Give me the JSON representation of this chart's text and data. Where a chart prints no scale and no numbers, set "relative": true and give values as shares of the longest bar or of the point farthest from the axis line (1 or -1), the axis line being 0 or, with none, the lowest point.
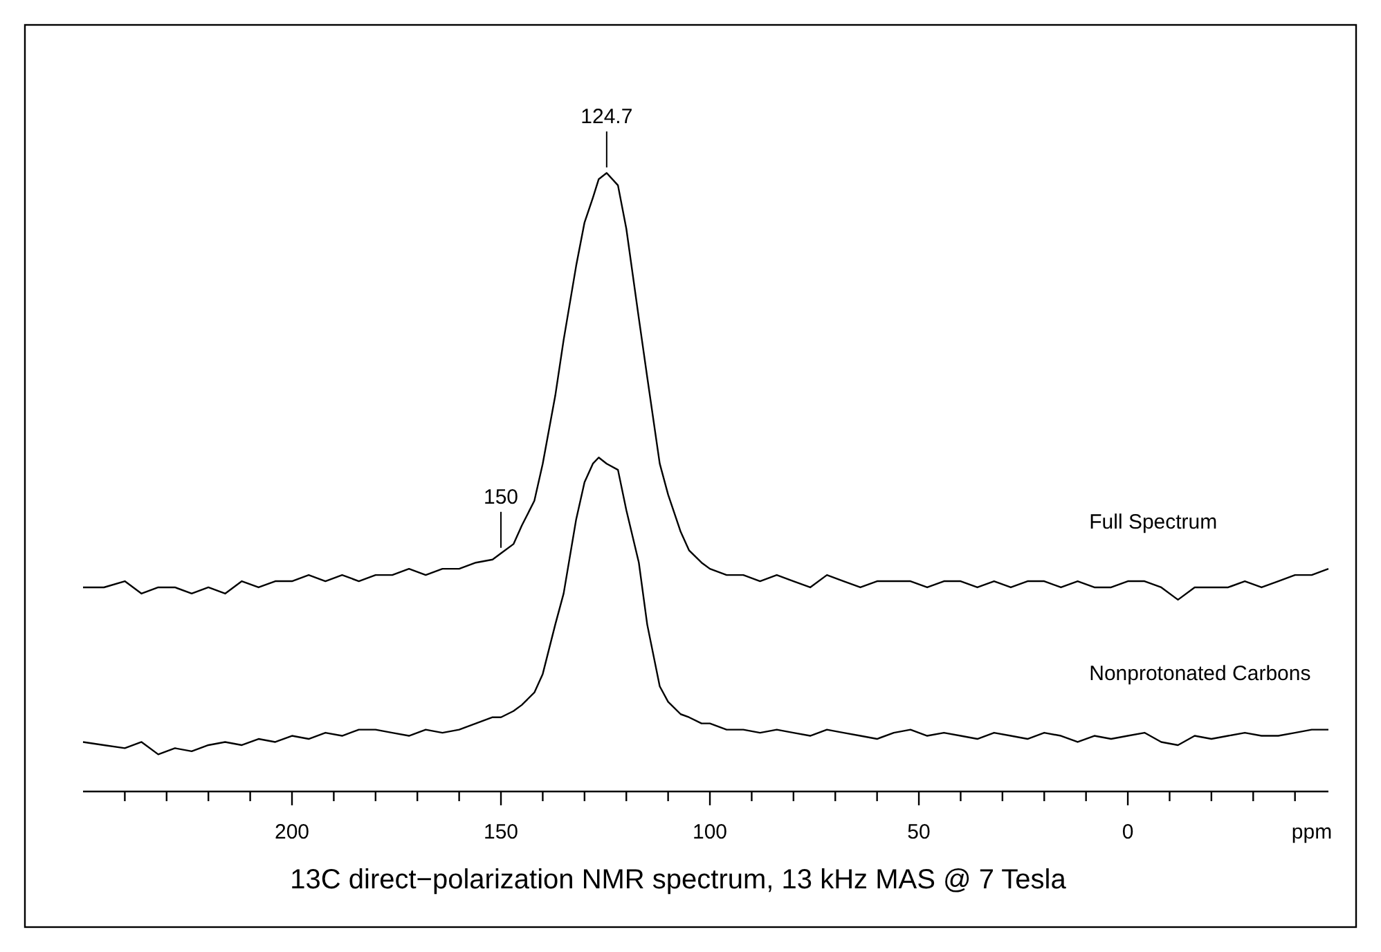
{
  "chart_data": {
    "type": "line",
    "relative": true,
    "title": "13C direct−polarization NMR spectrum, 13 kHz MAS @ 7 Tesla",
    "xlabel": "ppm",
    "xlim": [
      250,
      -48
    ],
    "xticks": [
      {
        "value": 240,
        "label": null
      },
      {
        "value": 230,
        "label": null
      },
      {
        "value": 220,
        "label": null
      },
      {
        "value": 210,
        "label": null
      },
      200,
      {
        "value": 190,
        "label": null
      },
      {
        "value": 180,
        "label": null
      },
      {
        "value": 170,
        "label": null
      },
      {
        "value": 160,
        "label": null
      },
      150,
      {
        "value": 140,
        "label": null
      },
      {
        "value": 130,
        "label": null
      },
      {
        "value": 120,
        "label": null
      },
      {
        "value": 110,
        "label": null
      },
      100,
      {
        "value": 90,
        "label": null
      },
      {
        "value": 80,
        "label": null
      },
      {
        "value": 70,
        "label": null
      },
      {
        "value": 60,
        "label": null
      },
      50,
      {
        "value": 40,
        "label": null
      },
      {
        "value": 30,
        "label": null
      },
      {
        "value": 20,
        "label": null
      },
      {
        "value": 10,
        "label": null
      },
      0,
      {
        "value": -10,
        "label": null
      },
      {
        "value": -20,
        "label": null
      },
      {
        "value": -30,
        "label": null
      },
      {
        "value": -40,
        "label": null
      }
    ],
    "x": [
      250,
      245,
      240,
      236,
      232,
      228,
      224,
      220,
      216,
      212,
      208,
      204,
      200,
      196,
      192,
      188,
      184,
      180,
      176,
      172,
      168,
      164,
      160,
      156,
      152,
      150,
      147,
      145,
      142,
      140,
      137,
      135,
      132,
      130,
      128,
      126.6,
      124.7,
      122,
      120,
      117,
      115,
      112,
      110,
      107,
      105,
      102,
      100,
      96,
      92,
      88,
      84,
      80,
      76,
      72,
      68,
      64,
      60,
      56,
      52,
      48,
      44,
      40,
      36,
      32,
      28,
      24,
      20,
      16,
      12,
      8,
      4,
      0,
      -4,
      -8,
      -12,
      -16,
      -20,
      -24,
      -28,
      -32,
      -36,
      -40,
      -44,
      -48
    ],
    "annotations": [
      {
        "text": "124.7",
        "x": 124.7,
        "y": 1.0
      },
      {
        "text": "150",
        "x": 150,
        "y": 0.385
      }
    ],
    "series": [
      {
        "name": "Full Spectrum",
        "color": "#000000",
        "values": [
          0.33,
          0.33,
          0.34,
          0.32,
          0.33,
          0.33,
          0.32,
          0.33,
          0.32,
          0.34,
          0.33,
          0.34,
          0.34,
          0.35,
          0.34,
          0.35,
          0.34,
          0.35,
          0.35,
          0.36,
          0.35,
          0.36,
          0.36,
          0.37,
          0.375,
          0.385,
          0.4,
          0.43,
          0.47,
          0.53,
          0.64,
          0.73,
          0.85,
          0.92,
          0.96,
          0.99,
          1.0,
          0.98,
          0.91,
          0.765,
          0.67,
          0.53,
          0.48,
          0.42,
          0.39,
          0.37,
          0.36,
          0.35,
          0.35,
          0.34,
          0.35,
          0.34,
          0.33,
          0.35,
          0.34,
          0.33,
          0.34,
          0.34,
          0.34,
          0.33,
          0.34,
          0.34,
          0.33,
          0.34,
          0.33,
          0.34,
          0.34,
          0.33,
          0.34,
          0.33,
          0.33,
          0.34,
          0.34,
          0.33,
          0.31,
          0.33,
          0.33,
          0.33,
          0.34,
          0.33,
          0.34,
          0.35,
          0.35,
          0.36
        ]
      },
      {
        "name": "Nonprotonated Carbons",
        "color": "#000000",
        "values": [
          0.08,
          0.075,
          0.07,
          0.08,
          0.06,
          0.07,
          0.065,
          0.075,
          0.08,
          0.075,
          0.085,
          0.08,
          0.09,
          0.085,
          0.095,
          0.09,
          0.1,
          0.1,
          0.095,
          0.09,
          0.1,
          0.095,
          0.1,
          0.11,
          0.12,
          0.12,
          0.13,
          0.14,
          0.16,
          0.19,
          0.27,
          0.32,
          0.44,
          0.5,
          0.53,
          0.54,
          0.53,
          0.52,
          0.455,
          0.37,
          0.27,
          0.17,
          0.145,
          0.125,
          0.12,
          0.11,
          0.11,
          0.1,
          0.1,
          0.095,
          0.1,
          0.095,
          0.09,
          0.1,
          0.095,
          0.09,
          0.085,
          0.095,
          0.1,
          0.09,
          0.095,
          0.09,
          0.085,
          0.095,
          0.09,
          0.085,
          0.095,
          0.09,
          0.08,
          0.09,
          0.085,
          0.09,
          0.095,
          0.08,
          0.075,
          0.09,
          0.085,
          0.09,
          0.095,
          0.09,
          0.09,
          0.095,
          0.1,
          0.1
        ]
      }
    ]
  }
}
